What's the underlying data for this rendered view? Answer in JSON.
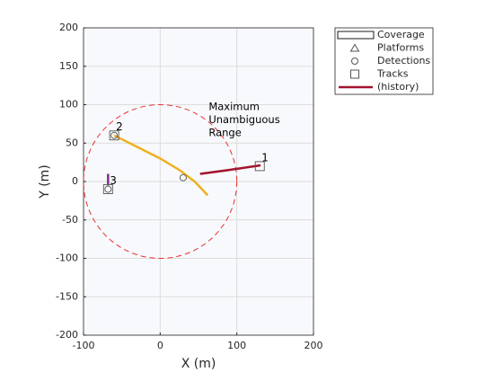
{
  "chart_data": {
    "type": "theater",
    "xlabel": "X (m)",
    "ylabel": "Y (m)",
    "xlim": [
      -100,
      200
    ],
    "ylim": [
      -200,
      200
    ],
    "xticks": [
      -100,
      0,
      100,
      200
    ],
    "yticks": [
      -200,
      -150,
      -100,
      -50,
      0,
      50,
      100,
      150,
      200
    ],
    "grid": true,
    "legend": "outside-top-right",
    "annotation": [
      "Maximum",
      "Unambiguous",
      "Range"
    ],
    "coverage": {
      "name": "Coverage",
      "center": [
        0,
        0
      ],
      "radius": 100,
      "color": "#e8312f"
    },
    "platforms": {
      "name": "Platforms"
    },
    "detections": {
      "name": "Detections",
      "x": [
        30,
        -60,
        -68
      ],
      "y": [
        5,
        60,
        -10
      ]
    },
    "tracks": {
      "name": "Tracks",
      "history_name": "(history)",
      "items": [
        {
          "label": "1",
          "x": 130,
          "y": 20,
          "color": "#a2142f",
          "history": {
            "x": [
              52,
              90,
              131
            ],
            "y": [
              10,
              15,
              21
            ]
          }
        },
        {
          "label": "2",
          "x": -60,
          "y": 60,
          "color": "#edb120",
          "history": {
            "x": [
              -60,
              -30,
              0,
              25,
              45,
              62
            ],
            "y": [
              60,
              45,
              30,
              15,
              0,
              -18
            ]
          }
        },
        {
          "label": "3",
          "x": -68,
          "y": -10,
          "color": "#7e2f8e",
          "history": {
            "x": [
              -68,
              -68
            ],
            "y": [
              10,
              -5
            ]
          }
        }
      ]
    }
  }
}
